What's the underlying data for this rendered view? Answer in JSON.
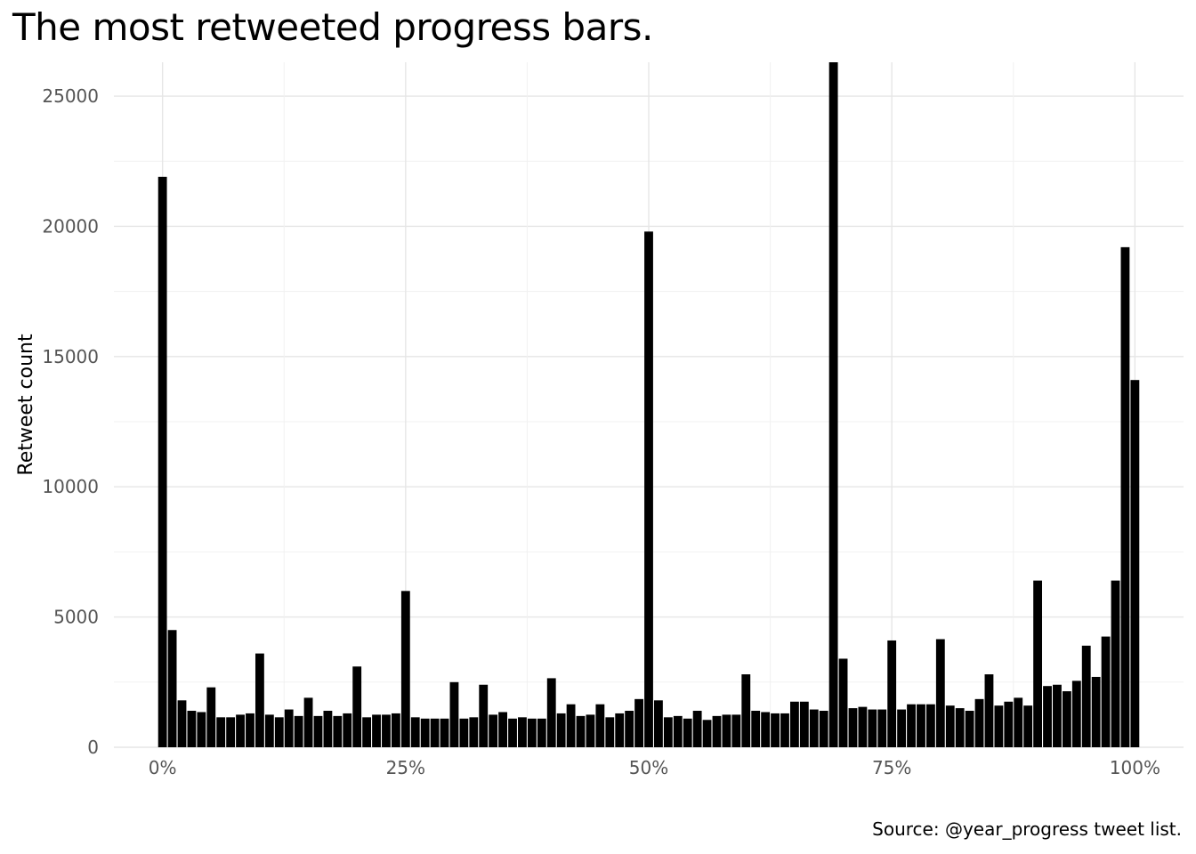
{
  "chart_data": {
    "type": "bar",
    "title": "The most retweeted progress bars.",
    "caption": "Source: @year_progress tweet list.",
    "xlabel": "",
    "ylabel": "Retweet count",
    "x_ticks": [
      {
        "value": 0,
        "label": "0%"
      },
      {
        "value": 25,
        "label": "25%"
      },
      {
        "value": 50,
        "label": "50%"
      },
      {
        "value": 75,
        "label": "75%"
      },
      {
        "value": 100,
        "label": "100%"
      }
    ],
    "y_ticks": [
      {
        "value": 0,
        "label": "0"
      },
      {
        "value": 5000,
        "label": "5000"
      },
      {
        "value": 10000,
        "label": "10000"
      },
      {
        "value": 15000,
        "label": "15000"
      },
      {
        "value": 20000,
        "label": "20000"
      },
      {
        "value": 25000,
        "label": "25000"
      }
    ],
    "xlim": [
      -5,
      105
    ],
    "ylim": [
      0,
      26300
    ],
    "grid": true,
    "bar_color": "#000000",
    "categories": [
      0,
      1,
      2,
      3,
      4,
      5,
      6,
      7,
      8,
      9,
      10,
      11,
      12,
      13,
      14,
      15,
      16,
      17,
      18,
      19,
      20,
      21,
      22,
      23,
      24,
      25,
      26,
      27,
      28,
      29,
      30,
      31,
      32,
      33,
      34,
      35,
      36,
      37,
      38,
      39,
      40,
      41,
      42,
      43,
      44,
      45,
      46,
      47,
      48,
      49,
      50,
      51,
      52,
      53,
      54,
      55,
      56,
      57,
      58,
      59,
      60,
      61,
      62,
      63,
      64,
      65,
      66,
      67,
      68,
      69,
      70,
      71,
      72,
      73,
      74,
      75,
      76,
      77,
      78,
      79,
      80,
      81,
      82,
      83,
      84,
      85,
      86,
      87,
      88,
      89,
      90,
      91,
      92,
      93,
      94,
      95,
      96,
      97,
      98,
      99,
      100
    ],
    "values": [
      21900,
      4500,
      1800,
      1400,
      1350,
      2300,
      1150,
      1150,
      1250,
      1300,
      3600,
      1250,
      1150,
      1450,
      1200,
      1900,
      1200,
      1400,
      1200,
      1300,
      3100,
      1150,
      1250,
      1250,
      1300,
      6000,
      1150,
      1100,
      1100,
      1100,
      2500,
      1100,
      1150,
      2400,
      1250,
      1350,
      1100,
      1150,
      1100,
      1100,
      2650,
      1300,
      1650,
      1200,
      1250,
      1650,
      1150,
      1300,
      1400,
      1850,
      19800,
      1800,
      1150,
      1200,
      1100,
      1400,
      1050,
      1200,
      1250,
      1250,
      2800,
      1400,
      1350,
      1300,
      1300,
      1750,
      1750,
      1450,
      1400,
      26400,
      3400,
      1500,
      1550,
      1450,
      1450,
      4100,
      1450,
      1650,
      1650,
      1650,
      4150,
      1600,
      1500,
      1400,
      1850,
      2800,
      1600,
      1750,
      1900,
      1600,
      6400,
      2350,
      2400,
      2150,
      2550,
      3900,
      2700,
      4250,
      6400,
      19200,
      14100
    ]
  }
}
